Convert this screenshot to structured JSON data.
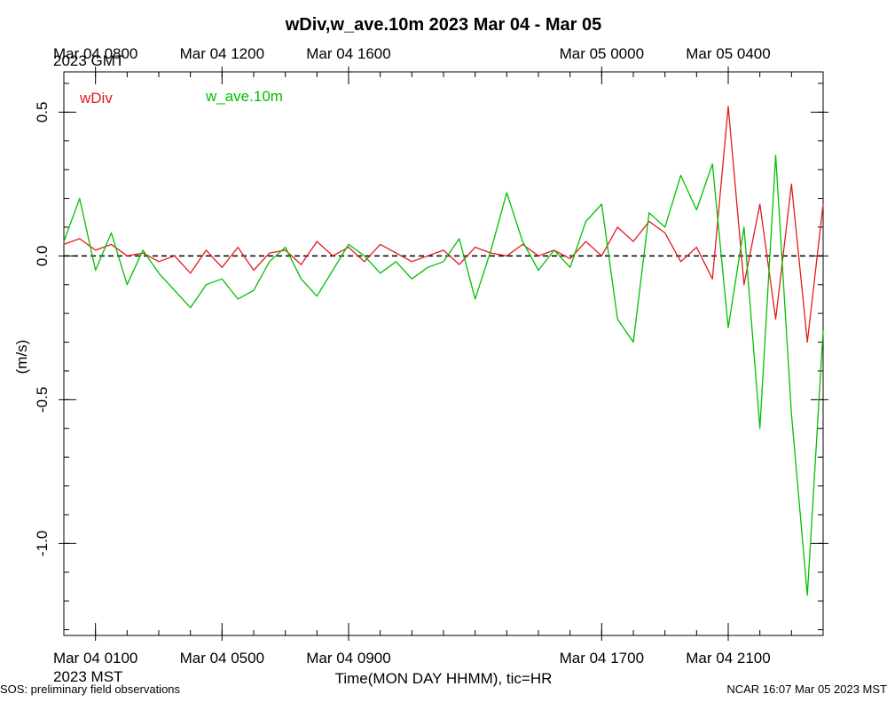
{
  "chart_data": {
    "type": "line",
    "title": "wDiv,w_ave.10m 2023 Mar 04 - Mar 05",
    "ylabel": "(m/s)",
    "xlabel": "Time(MON DAY HHMM), tic=HR",
    "top_axis_label": "2023 GMT",
    "bottom_axis_label": "2023 MST",
    "ylim": [
      -1.32,
      0.64
    ],
    "xlim_hours_mst": [
      0,
      24
    ],
    "y_ticks": [
      {
        "value": 0.5,
        "label": "0.5"
      },
      {
        "value": 0.0,
        "label": "0.0"
      },
      {
        "value": -0.5,
        "label": "-0.5"
      },
      {
        "value": -1.0,
        "label": "-1.0"
      }
    ],
    "x_ticks_bottom": [
      {
        "hour": 1,
        "label": "Mar 04 0100"
      },
      {
        "hour": 5,
        "label": "Mar 04 0500"
      },
      {
        "hour": 9,
        "label": "Mar 04 0900"
      },
      {
        "hour": 17,
        "label": "Mar 04 1700"
      },
      {
        "hour": 21,
        "label": "Mar 04 2100"
      }
    ],
    "x_ticks_top": [
      {
        "hour": 1,
        "label": "Mar 04 0800"
      },
      {
        "hour": 5,
        "label": "Mar 04 1200"
      },
      {
        "hour": 9,
        "label": "Mar 04 1600"
      },
      {
        "hour": 17,
        "label": "Mar 05 0000"
      },
      {
        "hour": 21,
        "label": "Mar 05 0400"
      }
    ],
    "zero_line": true,
    "grid": false,
    "legend": "top-left",
    "series": [
      {
        "name": "wDiv",
        "color": "#e41a1c",
        "x": [
          0,
          0.5,
          1,
          1.5,
          2,
          2.5,
          3,
          3.5,
          4,
          4.5,
          5,
          5.5,
          6,
          6.5,
          7,
          7.5,
          8,
          8.5,
          9,
          9.5,
          10,
          10.5,
          11,
          11.5,
          12,
          12.5,
          13,
          13.5,
          14,
          14.5,
          15,
          15.5,
          16,
          16.5,
          17,
          17.5,
          18,
          18.5,
          19,
          19.5,
          20,
          20.5,
          21,
          21.5,
          22,
          22.5,
          23,
          23.5,
          24
        ],
        "y": [
          0.04,
          0.06,
          0.02,
          0.04,
          0.0,
          0.01,
          -0.02,
          0.0,
          -0.06,
          0.02,
          -0.04,
          0.03,
          -0.05,
          0.01,
          0.02,
          -0.03,
          0.05,
          0.0,
          0.03,
          -0.02,
          0.04,
          0.01,
          -0.02,
          0.0,
          0.02,
          -0.03,
          0.03,
          0.01,
          0.0,
          0.04,
          0.0,
          0.02,
          -0.01,
          0.05,
          0.0,
          0.1,
          0.05,
          0.12,
          0.08,
          -0.02,
          0.03,
          -0.08,
          0.52,
          -0.1,
          0.18,
          -0.22,
          0.25,
          -0.3,
          0.18
        ]
      },
      {
        "name": "w_ave.10m",
        "color": "#00c000",
        "x": [
          0,
          0.5,
          1,
          1.5,
          2,
          2.5,
          3,
          3.5,
          4,
          4.5,
          5,
          5.5,
          6,
          6.5,
          7,
          7.5,
          8,
          8.5,
          9,
          9.5,
          10,
          10.5,
          11,
          11.5,
          12,
          12.5,
          13,
          13.5,
          14,
          14.5,
          15,
          15.5,
          16,
          16.5,
          17,
          17.5,
          18,
          18.5,
          19,
          19.5,
          20,
          20.5,
          21,
          21.5,
          22,
          22.5,
          23,
          23.5,
          24
        ],
        "y": [
          0.05,
          0.2,
          -0.05,
          0.08,
          -0.1,
          0.02,
          -0.06,
          -0.12,
          -0.18,
          -0.1,
          -0.08,
          -0.15,
          -0.12,
          -0.02,
          0.03,
          -0.08,
          -0.14,
          -0.05,
          0.04,
          0.0,
          -0.06,
          -0.02,
          -0.08,
          -0.04,
          -0.02,
          0.06,
          -0.15,
          0.02,
          0.22,
          0.05,
          -0.05,
          0.02,
          -0.04,
          0.12,
          0.18,
          -0.22,
          -0.3,
          0.15,
          0.1,
          0.28,
          0.16,
          0.32,
          -0.25,
          0.1,
          -0.6,
          0.35,
          -0.55,
          -1.18,
          -0.26
        ]
      }
    ]
  },
  "footer": {
    "left": "SOS: preliminary field observations",
    "right": "NCAR 16:07 Mar 05 2023 MST"
  }
}
